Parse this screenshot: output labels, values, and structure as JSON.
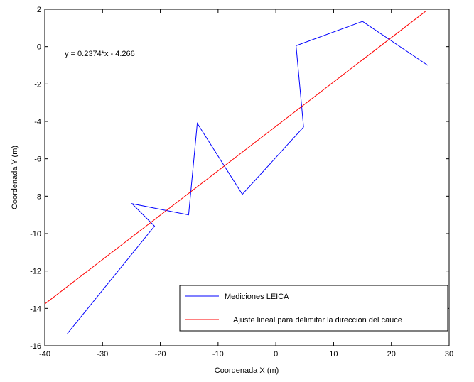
{
  "chart_data": {
    "type": "line",
    "xlabel": "Coordenada X (m)",
    "ylabel": "Coordenada Y (m)",
    "xlim": [
      -40,
      30
    ],
    "ylim": [
      -16,
      2
    ],
    "xticks": [
      -40,
      -30,
      -20,
      -10,
      0,
      10,
      20,
      30
    ],
    "yticks": [
      2,
      0,
      -2,
      -4,
      -6,
      -8,
      -10,
      -12,
      -14,
      -16
    ],
    "grid": false,
    "legend_position": "bottom-right",
    "annotation": "y = 0.2374*x - 4.266",
    "series": [
      {
        "name": "Mediciones LEICA",
        "color": "#0000ff",
        "x": [
          -36.1,
          -21.0,
          -24.9,
          -15.1,
          -13.6,
          -5.8,
          4.8,
          3.5,
          15.0,
          26.3
        ],
        "y": [
          -15.35,
          -9.6,
          -8.4,
          -9.0,
          -4.1,
          -7.9,
          -4.3,
          0.05,
          1.35,
          -1.0
        ]
      },
      {
        "name": "Ajuste lineal para delimitar la direccion del cauce",
        "color": "#ff0000",
        "x": [
          -40,
          25.9
        ],
        "y": [
          -13.762,
          1.883
        ]
      }
    ]
  }
}
